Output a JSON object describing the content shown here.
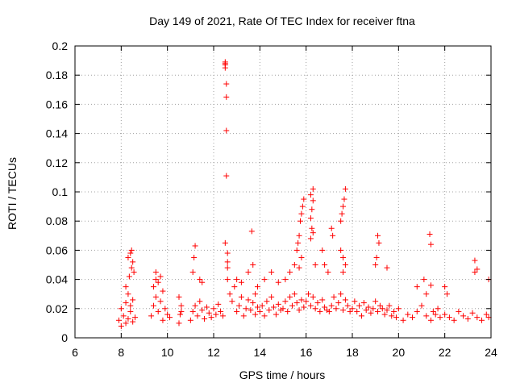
{
  "chart_data": {
    "type": "scatter",
    "title": "Day 149 of 2021, Rate Of TEC Index for receiver ftna",
    "xlabel": "GPS time / hours",
    "ylabel": "ROTI / TECUs",
    "xlim": [
      6,
      24
    ],
    "ylim": [
      0,
      0.2
    ],
    "xticks": [
      "6",
      "8",
      "10",
      "12",
      "14",
      "16",
      "18",
      "20",
      "22",
      "24"
    ],
    "yticks": [
      "0",
      "0.02",
      "0.04",
      "0.06",
      "0.08",
      "0.1",
      "0.12",
      "0.14",
      "0.16",
      "0.18",
      "0.2"
    ],
    "grid": true,
    "marker": "+",
    "color": "#ff0000",
    "series": [
      {
        "x": [
          7.9,
          8.0,
          8.1,
          8.2,
          8.3,
          8.4,
          8.5,
          8.6,
          8.0,
          8.2,
          8.3,
          8.4,
          8.5,
          8.2,
          8.35,
          8.45,
          8.5,
          8.3,
          8.4,
          8.45,
          8.55,
          9.3,
          9.4,
          9.5,
          9.6,
          9.7,
          9.8,
          9.9,
          10.0,
          10.1,
          9.4,
          9.5,
          9.6,
          9.8,
          9.5,
          9.7,
          10.5,
          10.55,
          10.6,
          10.5,
          10.6,
          11.0,
          11.1,
          11.2,
          11.3,
          11.4,
          11.5,
          11.6,
          11.7,
          11.8,
          11.9,
          12.0,
          12.1,
          12.2,
          12.3,
          12.4,
          11.1,
          11.15,
          11.2,
          11.4,
          11.5,
          12.5,
          12.5,
          12.5,
          12.5,
          12.55,
          12.55,
          12.55,
          12.55,
          12.5,
          12.6,
          12.6,
          12.6,
          12.6,
          12.7,
          12.8,
          12.9,
          13.0,
          13.1,
          13.2,
          13.3,
          13.4,
          13.5,
          13.6,
          13.7,
          13.8,
          13.9,
          13.0,
          13.2,
          13.5,
          13.7,
          13.8,
          13.9,
          13.65,
          14.0,
          14.1,
          14.2,
          14.3,
          14.4,
          14.5,
          14.6,
          14.7,
          14.8,
          14.9,
          14.2,
          14.5,
          14.8,
          15.0,
          15.1,
          15.2,
          15.3,
          15.4,
          15.5,
          15.6,
          15.7,
          15.8,
          15.9,
          15.1,
          15.3,
          15.5,
          15.7,
          15.8,
          15.6,
          15.65,
          15.7,
          15.75,
          15.8,
          15.85,
          15.9,
          16.0,
          16.1,
          16.2,
          16.3,
          16.4,
          16.5,
          16.6,
          16.7,
          16.8,
          16.9,
          16.2,
          16.25,
          16.3,
          16.2,
          16.3,
          16.25,
          16.3,
          16.2,
          16.4,
          16.7,
          16.8,
          16.95,
          17.0,
          17.1,
          17.2,
          17.3,
          17.4,
          17.5,
          17.6,
          17.7,
          17.8,
          17.9,
          17.5,
          17.55,
          17.6,
          17.65,
          17.7,
          17.5,
          17.6,
          17.7,
          17.1,
          17.15,
          17.6,
          18.0,
          18.1,
          18.2,
          18.3,
          18.4,
          18.5,
          18.6,
          18.7,
          18.8,
          18.9,
          19.0,
          19.1,
          19.2,
          19.3,
          19.4,
          19.5,
          19.0,
          19.1,
          19.15,
          19.05,
          19.5,
          19.6,
          19.7,
          19.8,
          19.9,
          20.0,
          20.2,
          20.4,
          20.6,
          20.8,
          21.0,
          21.2,
          21.4,
          21.5,
          21.6,
          21.8,
          20.8,
          21.1,
          21.2,
          21.4,
          21.35,
          21.4,
          21.7,
          22.0,
          22.2,
          22.4,
          22.6,
          22.8,
          23.0,
          23.2,
          23.4,
          23.6,
          23.8,
          23.9,
          22.0,
          22.1,
          23.3,
          23.4,
          23.3,
          23.9
        ],
        "y": [
          0.012,
          0.008,
          0.015,
          0.01,
          0.013,
          0.018,
          0.011,
          0.014,
          0.02,
          0.024,
          0.03,
          0.022,
          0.026,
          0.035,
          0.042,
          0.048,
          0.052,
          0.055,
          0.058,
          0.06,
          0.045,
          0.015,
          0.022,
          0.028,
          0.018,
          0.025,
          0.012,
          0.02,
          0.016,
          0.014,
          0.035,
          0.04,
          0.038,
          0.032,
          0.045,
          0.042,
          0.01,
          0.016,
          0.022,
          0.028,
          0.018,
          0.012,
          0.018,
          0.022,
          0.015,
          0.025,
          0.019,
          0.013,
          0.021,
          0.017,
          0.014,
          0.02,
          0.016,
          0.023,
          0.018,
          0.015,
          0.045,
          0.055,
          0.063,
          0.04,
          0.038,
          0.188,
          0.189,
          0.187,
          0.185,
          0.174,
          0.165,
          0.142,
          0.111,
          0.065,
          0.058,
          0.052,
          0.048,
          0.04,
          0.03,
          0.025,
          0.035,
          0.018,
          0.022,
          0.028,
          0.015,
          0.02,
          0.026,
          0.019,
          0.024,
          0.016,
          0.021,
          0.04,
          0.038,
          0.045,
          0.05,
          0.03,
          0.035,
          0.073,
          0.018,
          0.022,
          0.015,
          0.025,
          0.019,
          0.028,
          0.021,
          0.016,
          0.023,
          0.019,
          0.04,
          0.045,
          0.038,
          0.02,
          0.025,
          0.018,
          0.028,
          0.022,
          0.03,
          0.024,
          0.019,
          0.026,
          0.021,
          0.04,
          0.045,
          0.05,
          0.048,
          0.055,
          0.06,
          0.065,
          0.07,
          0.08,
          0.085,
          0.09,
          0.095,
          0.025,
          0.03,
          0.022,
          0.028,
          0.02,
          0.024,
          0.018,
          0.026,
          0.021,
          0.019,
          0.082,
          0.088,
          0.094,
          0.098,
          0.102,
          0.075,
          0.072,
          0.068,
          0.05,
          0.06,
          0.05,
          0.045,
          0.018,
          0.022,
          0.028,
          0.02,
          0.024,
          0.03,
          0.019,
          0.026,
          0.022,
          0.018,
          0.08,
          0.085,
          0.09,
          0.095,
          0.102,
          0.06,
          0.055,
          0.05,
          0.075,
          0.07,
          0.045,
          0.02,
          0.025,
          0.018,
          0.022,
          0.015,
          0.024,
          0.019,
          0.021,
          0.017,
          0.02,
          0.025,
          0.018,
          0.022,
          0.02,
          0.016,
          0.019,
          0.05,
          0.07,
          0.065,
          0.055,
          0.048,
          0.022,
          0.015,
          0.018,
          0.014,
          0.02,
          0.012,
          0.016,
          0.014,
          0.018,
          0.022,
          0.015,
          0.012,
          0.018,
          0.016,
          0.014,
          0.035,
          0.04,
          0.03,
          0.036,
          0.071,
          0.064,
          0.02,
          0.016,
          0.014,
          0.012,
          0.018,
          0.015,
          0.013,
          0.017,
          0.014,
          0.012,
          0.016,
          0.014,
          0.035,
          0.03,
          0.053,
          0.047,
          0.045,
          0.04
        ]
      }
    ]
  }
}
